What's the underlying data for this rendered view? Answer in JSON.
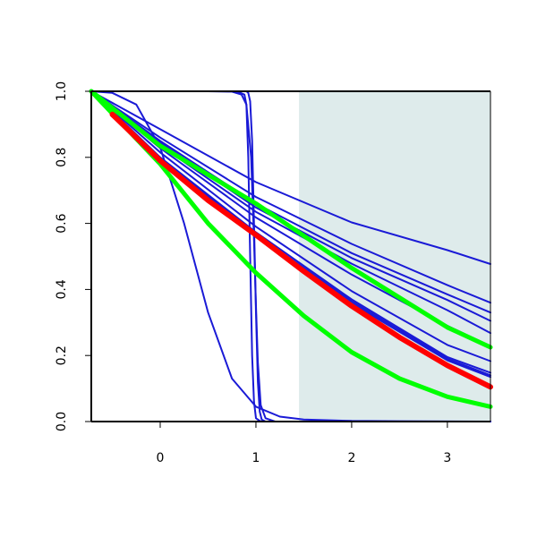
{
  "chart_data": {
    "type": "line",
    "title": "",
    "xlabel": "",
    "ylabel": "",
    "xlim": [
      -0.72,
      3.45
    ],
    "ylim": [
      0.0,
      1.0
    ],
    "x_ticks": [
      0,
      1,
      2,
      3
    ],
    "x_tick_labels": [
      "0",
      "1",
      "2",
      "3"
    ],
    "y_ticks": [
      0.0,
      0.2,
      0.4,
      0.6,
      0.8,
      1.0
    ],
    "y_tick_labels": [
      "0.0",
      "0.2",
      "0.4",
      "0.6",
      "0.8",
      "1.0"
    ],
    "grid": false,
    "legend": "none",
    "shaded_region": {
      "x_from": 1.45,
      "x_to": 3.45,
      "color": "#deebeb"
    },
    "colors": {
      "blue": "#1a1ad6",
      "red": "#ff0000",
      "green": "#00ff00",
      "axis": "#000000"
    },
    "series": [
      {
        "color": "#1a1ad6",
        "width": 2,
        "x": [
          -0.72,
          0.0,
          1.0,
          2.0,
          3.0,
          3.45
        ],
        "values": [
          1.0,
          0.885,
          0.725,
          0.603,
          0.519,
          0.477
        ]
      },
      {
        "color": "#1a1ad6",
        "width": 2,
        "x": [
          -0.72,
          0.0,
          1.0,
          2.0,
          3.0,
          3.45
        ],
        "values": [
          1.0,
          0.86,
          0.68,
          0.538,
          0.413,
          0.36
        ]
      },
      {
        "color": "#1a1ad6",
        "width": 2,
        "x": [
          -0.72,
          0.0,
          1.0,
          2.0,
          3.0,
          3.45
        ],
        "values": [
          1.0,
          0.85,
          0.66,
          0.51,
          0.385,
          0.33
        ]
      },
      {
        "color": "#1a1ad6",
        "width": 2,
        "x": [
          -0.72,
          0.0,
          1.0,
          2.0,
          3.0,
          3.45
        ],
        "values": [
          1.0,
          0.845,
          0.648,
          0.495,
          0.368,
          0.305
        ]
      },
      {
        "color": "#1a1ad6",
        "width": 2,
        "x": [
          -0.72,
          0.0,
          1.0,
          2.0,
          3.0,
          3.45
        ],
        "values": [
          1.0,
          0.836,
          0.635,
          0.478,
          0.337,
          0.268
        ]
      },
      {
        "color": "#1a1ad6",
        "width": 2,
        "x": [
          -0.72,
          0.0,
          1.0,
          2.0,
          3.0,
          3.45
        ],
        "values": [
          1.0,
          0.828,
          0.618,
          0.445,
          0.29,
          0.228
        ]
      },
      {
        "color": "#1a1ad6",
        "width": 2,
        "x": [
          -0.72,
          0.0,
          1.0,
          2.0,
          3.0,
          3.45
        ],
        "values": [
          1.0,
          0.815,
          0.59,
          0.395,
          0.232,
          0.183
        ]
      },
      {
        "color": "#1a1ad6",
        "width": 2,
        "x": [
          -0.72,
          0.0,
          1.0,
          2.0,
          3.0,
          3.45
        ],
        "values": [
          1.0,
          0.8,
          0.573,
          0.37,
          0.195,
          0.148
        ]
      },
      {
        "color": "#1a1ad6",
        "width": 2,
        "x": [
          -0.72,
          0.0,
          1.0,
          2.0,
          3.0,
          3.45
        ],
        "values": [
          1.0,
          0.797,
          0.566,
          0.364,
          0.19,
          0.14
        ]
      },
      {
        "color": "#1a1ad6",
        "width": 2,
        "x": [
          -0.72,
          0.0,
          1.0,
          2.0,
          3.0,
          3.45
        ],
        "values": [
          1.0,
          0.793,
          0.56,
          0.358,
          0.185,
          0.135
        ]
      },
      {
        "color": "#1a1ad6",
        "width": 2,
        "x": [
          -0.72,
          -0.5,
          -0.25,
          0.0,
          0.25,
          0.5,
          0.75,
          1.0,
          1.25,
          1.5,
          2.0,
          2.5,
          3.45
        ],
        "values": [
          1.0,
          0.995,
          0.96,
          0.83,
          0.6,
          0.33,
          0.13,
          0.045,
          0.015,
          0.006,
          0.002,
          0.001,
          0.0
        ]
      },
      {
        "color": "#1a1ad6",
        "width": 2,
        "x": [
          -0.72,
          0.5,
          0.75,
          0.85,
          0.9,
          0.95,
          0.98,
          1.0,
          1.02,
          1.05,
          1.1,
          1.2,
          3.45
        ],
        "values": [
          1.0,
          1.0,
          0.999,
          0.99,
          0.96,
          0.8,
          0.55,
          0.35,
          0.18,
          0.05,
          0.01,
          0.0,
          0.0
        ]
      },
      {
        "color": "#1a1ad6",
        "width": 2,
        "x": [
          -0.72,
          0.8,
          0.88,
          0.9,
          0.92,
          0.94,
          0.96,
          0.98,
          1.0,
          1.05,
          3.45
        ],
        "values": [
          1.0,
          1.0,
          0.99,
          0.96,
          0.8,
          0.5,
          0.2,
          0.06,
          0.01,
          0.0,
          0.0
        ]
      },
      {
        "color": "#1a1ad6",
        "width": 2,
        "x": [
          -0.72,
          0.9,
          0.92,
          0.94,
          0.96,
          0.98,
          1.0,
          1.02,
          1.04,
          1.06,
          1.1,
          3.45
        ],
        "values": [
          1.0,
          1.0,
          0.995,
          0.97,
          0.85,
          0.6,
          0.33,
          0.12,
          0.03,
          0.006,
          0.0,
          0.0
        ]
      },
      {
        "color": "#00ff00",
        "width": 5,
        "x": [
          -0.72,
          0.0,
          1.0,
          2.0,
          3.0,
          3.45
        ],
        "values": [
          1.0,
          0.835,
          0.66,
          0.465,
          0.285,
          0.225
        ]
      },
      {
        "color": "#00ff00",
        "width": 5,
        "x": [
          -0.72,
          0.0,
          0.5,
          1.0,
          1.5,
          2.0,
          2.5,
          3.0,
          3.45
        ],
        "values": [
          1.0,
          0.78,
          0.6,
          0.45,
          0.32,
          0.21,
          0.13,
          0.075,
          0.045
        ]
      },
      {
        "color": "#ff0000",
        "width": 6,
        "x": [
          -0.5,
          0.0,
          0.5,
          1.0,
          1.5,
          2.0,
          2.5,
          3.0,
          3.45
        ],
        "values": [
          0.93,
          0.79,
          0.67,
          0.565,
          0.455,
          0.35,
          0.255,
          0.17,
          0.105
        ]
      }
    ]
  }
}
